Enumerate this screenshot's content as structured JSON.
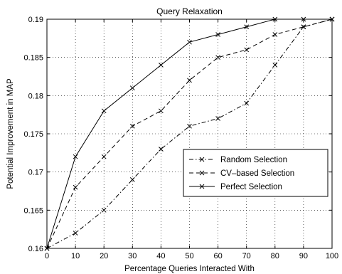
{
  "chart_data": {
    "type": "line",
    "title": "Query Relaxation",
    "xlabel": "Percentage Queries Interacted With",
    "ylabel": "Potential Improvement in MAP",
    "x": [
      0,
      10,
      20,
      30,
      40,
      50,
      60,
      70,
      80,
      90,
      100
    ],
    "xlim": [
      0,
      100
    ],
    "ylim": [
      0.16,
      0.19
    ],
    "xticks": [
      0,
      10,
      20,
      30,
      40,
      50,
      60,
      70,
      80,
      90,
      100
    ],
    "xtick_labels": [
      "0",
      "10",
      "20",
      "30",
      "40",
      "50",
      "60",
      "70",
      "80",
      "90",
      "100"
    ],
    "yticks": [
      0.16,
      0.165,
      0.17,
      0.175,
      0.18,
      0.185,
      0.19
    ],
    "ytick_labels": [
      "0.16",
      "0.165",
      "0.17",
      "0.175",
      "0.18",
      "0.185",
      "0.19"
    ],
    "grid": true,
    "legend_position": "center-right",
    "series": [
      {
        "name": "Random Selection",
        "line_style": "dash-dot",
        "marker": "x",
        "color": "#000000",
        "values": [
          0.16,
          0.162,
          0.165,
          0.169,
          0.173,
          0.176,
          0.177,
          0.179,
          0.184,
          0.189,
          0.19
        ]
      },
      {
        "name": "CV–based Selection",
        "line_style": "dashed",
        "marker": "x",
        "color": "#000000",
        "values": [
          0.16,
          0.168,
          0.172,
          0.176,
          0.178,
          0.182,
          0.185,
          0.186,
          0.188,
          0.189,
          0.19
        ]
      },
      {
        "name": "Perfect Selection",
        "line_style": "solid",
        "marker": "x",
        "color": "#000000",
        "values": [
          0.16,
          0.172,
          0.178,
          0.181,
          0.184,
          0.187,
          0.188,
          0.189,
          0.19,
          0.19,
          0.19
        ]
      }
    ]
  }
}
